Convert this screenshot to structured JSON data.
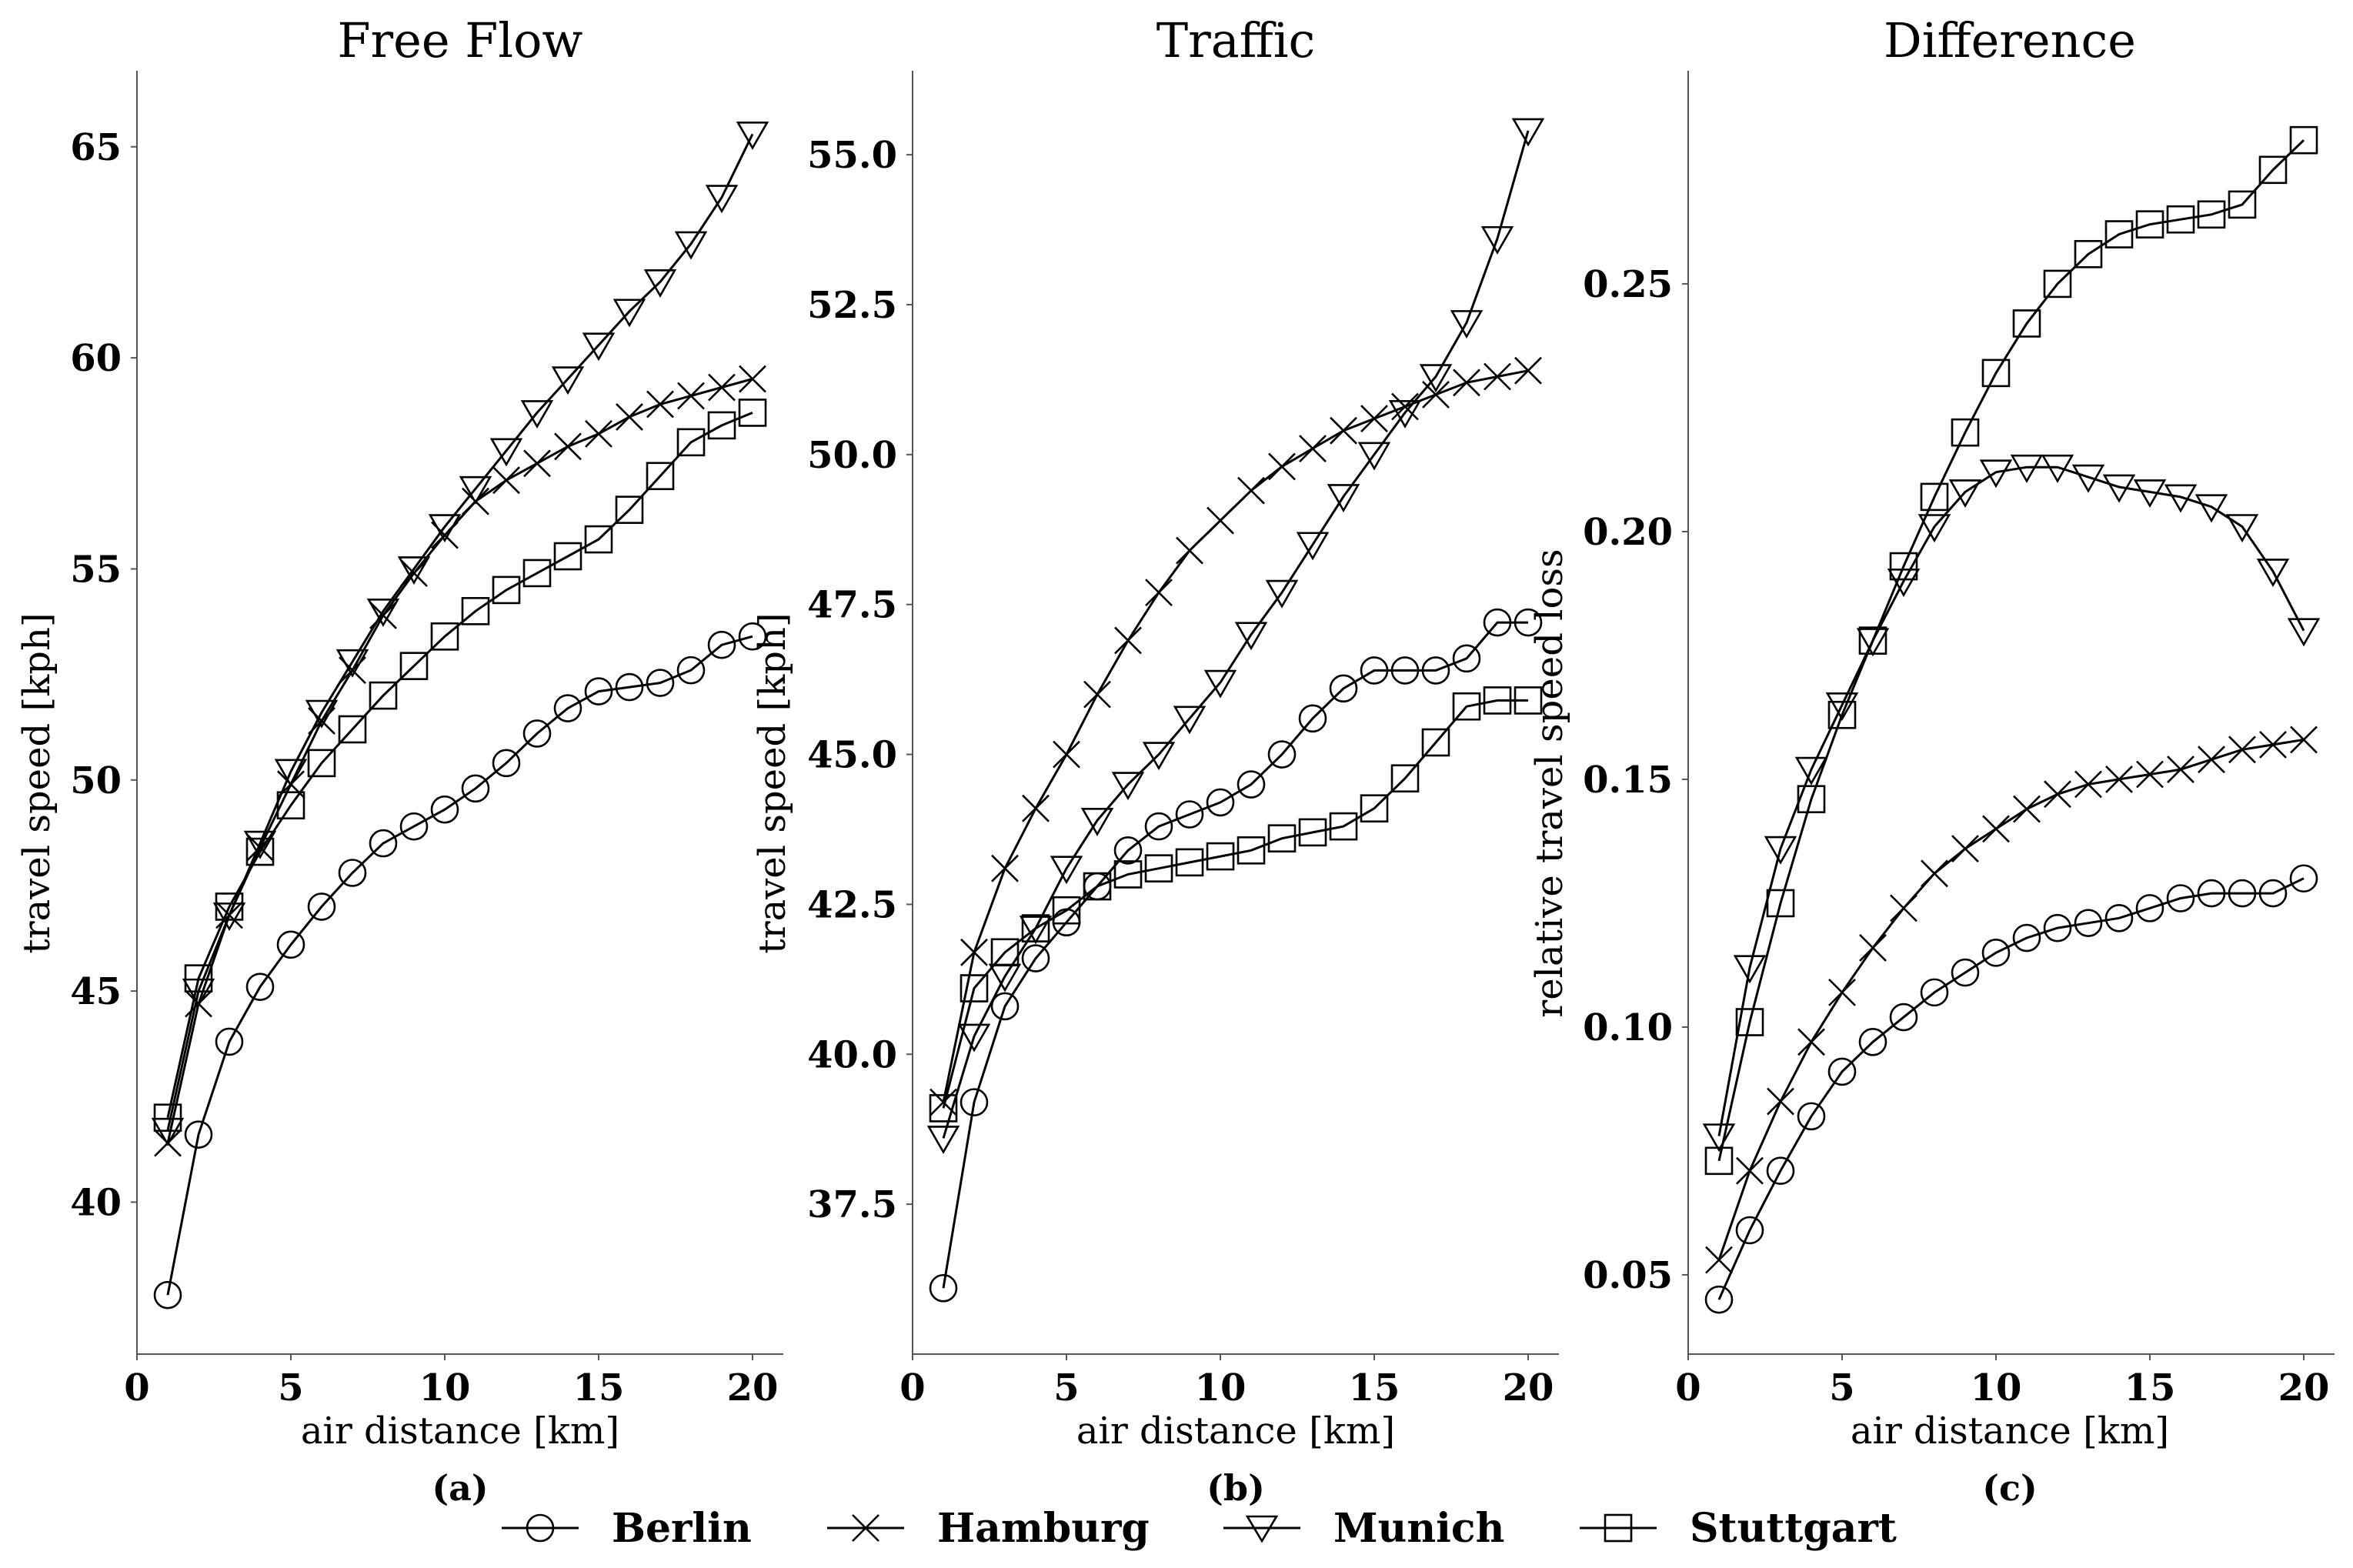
{
  "chart_data": [
    {
      "type": "line",
      "id": "a",
      "title": "Free Flow",
      "xlabel": "air distance [km]",
      "ylabel": "travel speed [kph]",
      "caption": "(a)",
      "xlim": [
        0,
        21
      ],
      "ylim": [
        36.4,
        66.8
      ],
      "xticks": [
        0,
        5,
        10,
        15,
        20
      ],
      "yticks": [
        40,
        45,
        50,
        55,
        60,
        65
      ],
      "x": [
        1,
        2,
        3,
        4,
        5,
        6,
        7,
        8,
        9,
        10,
        11,
        12,
        13,
        14,
        15,
        16,
        17,
        18,
        19,
        20
      ],
      "series": [
        {
          "name": "Berlin",
          "marker": "circle",
          "values": [
            37.8,
            41.6,
            43.8,
            45.1,
            46.1,
            47.0,
            47.8,
            48.5,
            48.9,
            49.3,
            49.8,
            50.4,
            51.1,
            51.7,
            52.1,
            52.2,
            52.3,
            52.6,
            53.2,
            53.4
          ]
        },
        {
          "name": "Hamburg",
          "marker": "x",
          "values": [
            41.4,
            44.7,
            46.8,
            48.4,
            49.9,
            51.4,
            52.6,
            53.9,
            54.9,
            55.8,
            56.6,
            57.1,
            57.5,
            57.9,
            58.2,
            58.6,
            58.9,
            59.1,
            59.3,
            59.5
          ]
        },
        {
          "name": "Munich",
          "marker": "triangle",
          "values": [
            41.7,
            45.0,
            46.8,
            48.5,
            50.2,
            51.6,
            52.8,
            54.0,
            55.0,
            56.0,
            56.9,
            57.8,
            58.7,
            59.5,
            60.3,
            61.1,
            61.8,
            62.7,
            63.8,
            65.3
          ]
        },
        {
          "name": "Stuttgart",
          "marker": "square",
          "values": [
            42.0,
            45.3,
            47.0,
            48.3,
            49.4,
            50.4,
            51.2,
            52.0,
            52.7,
            53.4,
            54.0,
            54.5,
            54.9,
            55.3,
            55.7,
            56.4,
            57.2,
            58.0,
            58.4,
            58.7
          ]
        }
      ]
    },
    {
      "type": "line",
      "id": "b",
      "title": "Traffic",
      "xlabel": "air distance [km]",
      "ylabel": "travel speed [kph]",
      "caption": "(b)",
      "xlim": [
        0,
        21
      ],
      "ylim": [
        35.0,
        56.4
      ],
      "xticks": [
        0,
        5,
        10,
        15,
        20
      ],
      "yticks": [
        37.5,
        40.0,
        42.5,
        45.0,
        47.5,
        50.0,
        52.5,
        55.0
      ],
      "ytick_labels": [
        "37.5",
        "40.0",
        "42.5",
        "45.0",
        "47.5",
        "50.0",
        "52.5",
        "55.0"
      ],
      "x": [
        1,
        2,
        3,
        4,
        5,
        6,
        7,
        8,
        9,
        10,
        11,
        12,
        13,
        14,
        15,
        16,
        17,
        18,
        19,
        20
      ],
      "series": [
        {
          "name": "Berlin",
          "marker": "circle",
          "values": [
            36.1,
            39.2,
            40.8,
            41.6,
            42.2,
            42.8,
            43.4,
            43.8,
            44.0,
            44.2,
            44.5,
            45.0,
            45.6,
            46.1,
            46.4,
            46.4,
            46.4,
            46.6,
            47.2,
            47.2
          ]
        },
        {
          "name": "Hamburg",
          "marker": "x",
          "values": [
            39.2,
            41.7,
            43.1,
            44.1,
            45.0,
            46.0,
            46.9,
            47.7,
            48.4,
            48.9,
            49.4,
            49.8,
            50.1,
            50.4,
            50.6,
            50.8,
            51.0,
            51.2,
            51.3,
            51.4
          ]
        },
        {
          "name": "Munich",
          "marker": "triangle",
          "values": [
            38.6,
            40.3,
            41.3,
            42.1,
            43.1,
            43.9,
            44.5,
            45.0,
            45.6,
            46.2,
            47.0,
            47.7,
            48.5,
            49.3,
            50.0,
            50.7,
            51.3,
            52.2,
            53.6,
            55.4
          ]
        },
        {
          "name": "Stuttgart",
          "marker": "square",
          "values": [
            39.1,
            41.1,
            41.7,
            42.1,
            42.4,
            42.8,
            43.0,
            43.1,
            43.2,
            43.3,
            43.4,
            43.6,
            43.7,
            43.8,
            44.1,
            44.6,
            45.2,
            45.8,
            45.9,
            45.9
          ]
        }
      ]
    },
    {
      "type": "line",
      "id": "c",
      "title": "Difference",
      "xlabel": "air distance [km]",
      "ylabel": "relative travel speed loss",
      "caption": "(c)",
      "xlim": [
        0,
        21
      ],
      "ylim": [
        0.034,
        0.293
      ],
      "xticks": [
        0,
        5,
        10,
        15,
        20
      ],
      "yticks": [
        0.05,
        0.1,
        0.15,
        0.2,
        0.25
      ],
      "ytick_labels": [
        "0.05",
        "0.10",
        "0.15",
        "0.20",
        "0.25"
      ],
      "x": [
        1,
        2,
        3,
        4,
        5,
        6,
        7,
        8,
        9,
        10,
        11,
        12,
        13,
        14,
        15,
        16,
        17,
        18,
        19,
        20
      ],
      "series": [
        {
          "name": "Berlin",
          "marker": "circle",
          "values": [
            0.045,
            0.059,
            0.071,
            0.082,
            0.091,
            0.097,
            0.102,
            0.107,
            0.111,
            0.115,
            0.118,
            0.12,
            0.121,
            0.122,
            0.124,
            0.126,
            0.127,
            0.127,
            0.127,
            0.13
          ]
        },
        {
          "name": "Hamburg",
          "marker": "x",
          "values": [
            0.053,
            0.071,
            0.085,
            0.097,
            0.107,
            0.116,
            0.124,
            0.131,
            0.136,
            0.14,
            0.144,
            0.147,
            0.149,
            0.15,
            0.151,
            0.152,
            0.154,
            0.156,
            0.157,
            0.158
          ]
        },
        {
          "name": "Munich",
          "marker": "triangle",
          "values": [
            0.078,
            0.112,
            0.136,
            0.152,
            0.165,
            0.178,
            0.19,
            0.201,
            0.208,
            0.212,
            0.213,
            0.213,
            0.211,
            0.209,
            0.208,
            0.207,
            0.205,
            0.201,
            0.192,
            0.18
          ]
        },
        {
          "name": "Stuttgart",
          "marker": "square",
          "values": [
            0.073,
            0.101,
            0.125,
            0.146,
            0.163,
            0.178,
            0.193,
            0.207,
            0.22,
            0.232,
            0.242,
            0.25,
            0.256,
            0.26,
            0.262,
            0.263,
            0.264,
            0.266,
            0.273,
            0.279
          ]
        }
      ]
    }
  ],
  "legend": {
    "placement": "bottom-center",
    "entries": [
      {
        "name": "Berlin",
        "marker": "circle"
      },
      {
        "name": "Hamburg",
        "marker": "x"
      },
      {
        "name": "Munich",
        "marker": "triangle"
      },
      {
        "name": "Stuttgart",
        "marker": "square"
      }
    ]
  },
  "colors": {
    "line": "#000000",
    "axis": "#555555",
    "background": "#ffffff"
  }
}
